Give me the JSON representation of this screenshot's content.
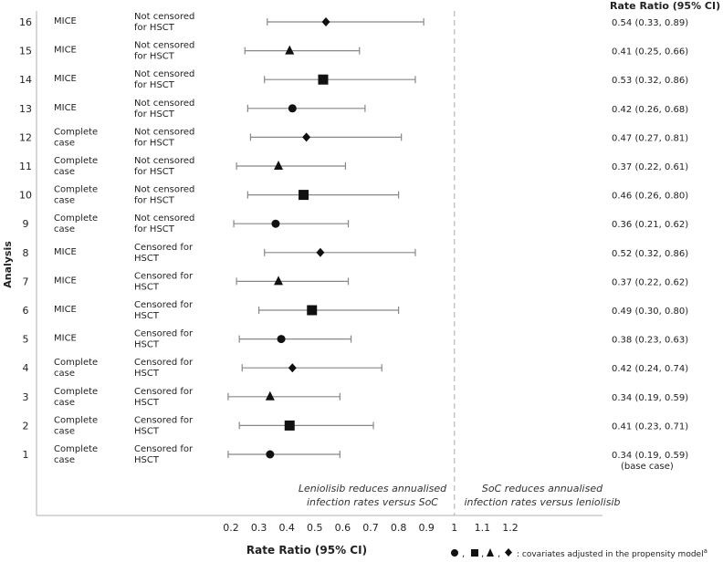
{
  "chart_data": {
    "type": "forest",
    "header": "Rate Ratio (95% CI)",
    "xlabel": "Rate Ratio (95% CI)",
    "ylabel": "Analysis",
    "x_ticks": [
      "0.2",
      "0.3",
      "0.4",
      "0.5",
      "0.6",
      "0.7",
      "0.8",
      "0.9",
      "1",
      "1.1",
      "1.2"
    ],
    "xlim": [
      0.2,
      1.2
    ],
    "reference_line": 1,
    "left_annotation": [
      "Leniolisib reduces annualised",
      "infection rates versus SoC"
    ],
    "right_annotation": [
      "SoC reduces annualised",
      "infection rates versus leniolisib"
    ],
    "legend_text": ": covariates adjusted in the propensity model",
    "legend_superscript": "a",
    "legend_separators": [
      ",",
      ",",
      ","
    ],
    "legend_markers": [
      "circle",
      "square",
      "triangle",
      "diamond"
    ],
    "rows": [
      {
        "id": "16",
        "method": [
          "MICE"
        ],
        "censoring": [
          "Not censored",
          "for HSCT"
        ],
        "estimate": 0.54,
        "lower": 0.33,
        "upper": 0.89,
        "marker": "diamond",
        "label": "0.54 (0.33, 0.89)"
      },
      {
        "id": "15",
        "method": [
          "MICE"
        ],
        "censoring": [
          "Not censored",
          "for HSCT"
        ],
        "estimate": 0.41,
        "lower": 0.25,
        "upper": 0.66,
        "marker": "triangle",
        "label": "0.41 (0.25, 0.66)"
      },
      {
        "id": "14",
        "method": [
          "MICE"
        ],
        "censoring": [
          "Not censored",
          "for HSCT"
        ],
        "estimate": 0.53,
        "lower": 0.32,
        "upper": 0.86,
        "marker": "square",
        "label": "0.53 (0.32, 0.86)"
      },
      {
        "id": "13",
        "method": [
          "MICE"
        ],
        "censoring": [
          "Not censored",
          "for HSCT"
        ],
        "estimate": 0.42,
        "lower": 0.26,
        "upper": 0.68,
        "marker": "circle",
        "label": "0.42 (0.26, 0.68)"
      },
      {
        "id": "12",
        "method": [
          "Complete",
          "case"
        ],
        "censoring": [
          "Not censored",
          "for HSCT"
        ],
        "estimate": 0.47,
        "lower": 0.27,
        "upper": 0.81,
        "marker": "diamond",
        "label": "0.47 (0.27, 0.81)"
      },
      {
        "id": "11",
        "method": [
          "Complete",
          "case"
        ],
        "censoring": [
          "Not censored",
          "for HSCT"
        ],
        "estimate": 0.37,
        "lower": 0.22,
        "upper": 0.61,
        "marker": "triangle",
        "label": "0.37 (0.22, 0.61)"
      },
      {
        "id": "10",
        "method": [
          "Complete",
          "case"
        ],
        "censoring": [
          "Not censored",
          "for HSCT"
        ],
        "estimate": 0.46,
        "lower": 0.26,
        "upper": 0.8,
        "marker": "square",
        "label": "0.46 (0.26, 0.80)"
      },
      {
        "id": "9",
        "method": [
          "Complete",
          "case"
        ],
        "censoring": [
          "Not censored",
          "for HSCT"
        ],
        "estimate": 0.36,
        "lower": 0.21,
        "upper": 0.62,
        "marker": "circle",
        "label": "0.36 (0.21, 0.62)"
      },
      {
        "id": "8",
        "method": [
          "MICE"
        ],
        "censoring": [
          "Censored for",
          "HSCT"
        ],
        "estimate": 0.52,
        "lower": 0.32,
        "upper": 0.86,
        "marker": "diamond",
        "label": "0.52 (0.32, 0.86)"
      },
      {
        "id": "7",
        "method": [
          "MICE"
        ],
        "censoring": [
          "Censored for",
          "HSCT"
        ],
        "estimate": 0.37,
        "lower": 0.22,
        "upper": 0.62,
        "marker": "triangle",
        "label": "0.37 (0.22, 0.62)"
      },
      {
        "id": "6",
        "method": [
          "MICE"
        ],
        "censoring": [
          "Censored for",
          "HSCT"
        ],
        "estimate": 0.49,
        "lower": 0.3,
        "upper": 0.8,
        "marker": "square",
        "label": "0.49 (0.30, 0.80)"
      },
      {
        "id": "5",
        "method": [
          "MICE"
        ],
        "censoring": [
          "Censored for",
          "HSCT"
        ],
        "estimate": 0.38,
        "lower": 0.23,
        "upper": 0.63,
        "marker": "circle",
        "label": "0.38 (0.23, 0.63)"
      },
      {
        "id": "4",
        "method": [
          "Complete",
          "case"
        ],
        "censoring": [
          "Censored for",
          "HSCT"
        ],
        "estimate": 0.42,
        "lower": 0.24,
        "upper": 0.74,
        "marker": "diamond",
        "label": "0.42 (0.24, 0.74)"
      },
      {
        "id": "3",
        "method": [
          "Complete",
          "case"
        ],
        "censoring": [
          "Censored for",
          "HSCT"
        ],
        "estimate": 0.34,
        "lower": 0.19,
        "upper": 0.59,
        "marker": "triangle",
        "label": "0.34 (0.19, 0.59)"
      },
      {
        "id": "2",
        "method": [
          "Complete",
          "case"
        ],
        "censoring": [
          "Censored for",
          "HSCT"
        ],
        "estimate": 0.41,
        "lower": 0.23,
        "upper": 0.71,
        "marker": "square",
        "label": "0.41 (0.23, 0.71)"
      },
      {
        "id": "1",
        "method": [
          "Complete",
          "case"
        ],
        "censoring": [
          "Censored for",
          "HSCT"
        ],
        "estimate": 0.34,
        "lower": 0.19,
        "upper": 0.59,
        "marker": "circle",
        "label": "0.34 (0.19, 0.59)",
        "sublabel": "(base case)"
      }
    ]
  }
}
